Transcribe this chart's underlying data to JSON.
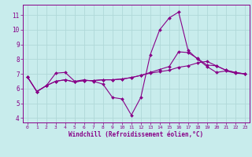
{
  "xlabel": "Windchill (Refroidissement éolien,°C)",
  "background_color": "#c8ecec",
  "grid_color": "#b0d8d8",
  "line_color": "#880088",
  "xlim": [
    -0.5,
    23.5
  ],
  "ylim": [
    3.7,
    11.7
  ],
  "xticks": [
    0,
    1,
    2,
    3,
    4,
    5,
    6,
    7,
    8,
    9,
    10,
    11,
    12,
    13,
    14,
    15,
    16,
    17,
    18,
    19,
    20,
    21,
    22,
    23
  ],
  "yticks": [
    4,
    5,
    6,
    7,
    8,
    9,
    10,
    11
  ],
  "line1_x": [
    0,
    1,
    2,
    3,
    4,
    5,
    6,
    7,
    8,
    9,
    10,
    11,
    12,
    13,
    14,
    15,
    16,
    17,
    18,
    19,
    20,
    21,
    22,
    23
  ],
  "line1_y": [
    6.8,
    5.8,
    6.2,
    7.05,
    7.1,
    6.5,
    6.6,
    6.5,
    6.3,
    5.4,
    5.3,
    4.2,
    5.4,
    8.3,
    10.0,
    10.8,
    11.2,
    8.6,
    8.0,
    7.5,
    7.1,
    7.2,
    7.05,
    7.0
  ],
  "line2_x": [
    0,
    1,
    2,
    3,
    4,
    5,
    6,
    7,
    8,
    9,
    10,
    11,
    12,
    13,
    14,
    15,
    16,
    17,
    18,
    19,
    20,
    21,
    22,
    23
  ],
  "line2_y": [
    6.8,
    5.8,
    6.2,
    6.5,
    6.6,
    6.45,
    6.55,
    6.55,
    6.6,
    6.6,
    6.65,
    6.75,
    6.9,
    7.05,
    7.15,
    7.25,
    7.45,
    7.55,
    7.75,
    7.85,
    7.55,
    7.25,
    7.1,
    7.0
  ],
  "line3_x": [
    0,
    1,
    2,
    3,
    4,
    5,
    6,
    7,
    8,
    9,
    10,
    11,
    12,
    13,
    14,
    15,
    16,
    17,
    18,
    19,
    20,
    21,
    22,
    23
  ],
  "line3_y": [
    6.8,
    5.8,
    6.2,
    6.5,
    6.6,
    6.45,
    6.55,
    6.55,
    6.6,
    6.6,
    6.65,
    6.75,
    6.9,
    7.1,
    7.3,
    7.5,
    8.5,
    8.45,
    8.05,
    7.6,
    7.55,
    7.25,
    7.1,
    7.0
  ]
}
